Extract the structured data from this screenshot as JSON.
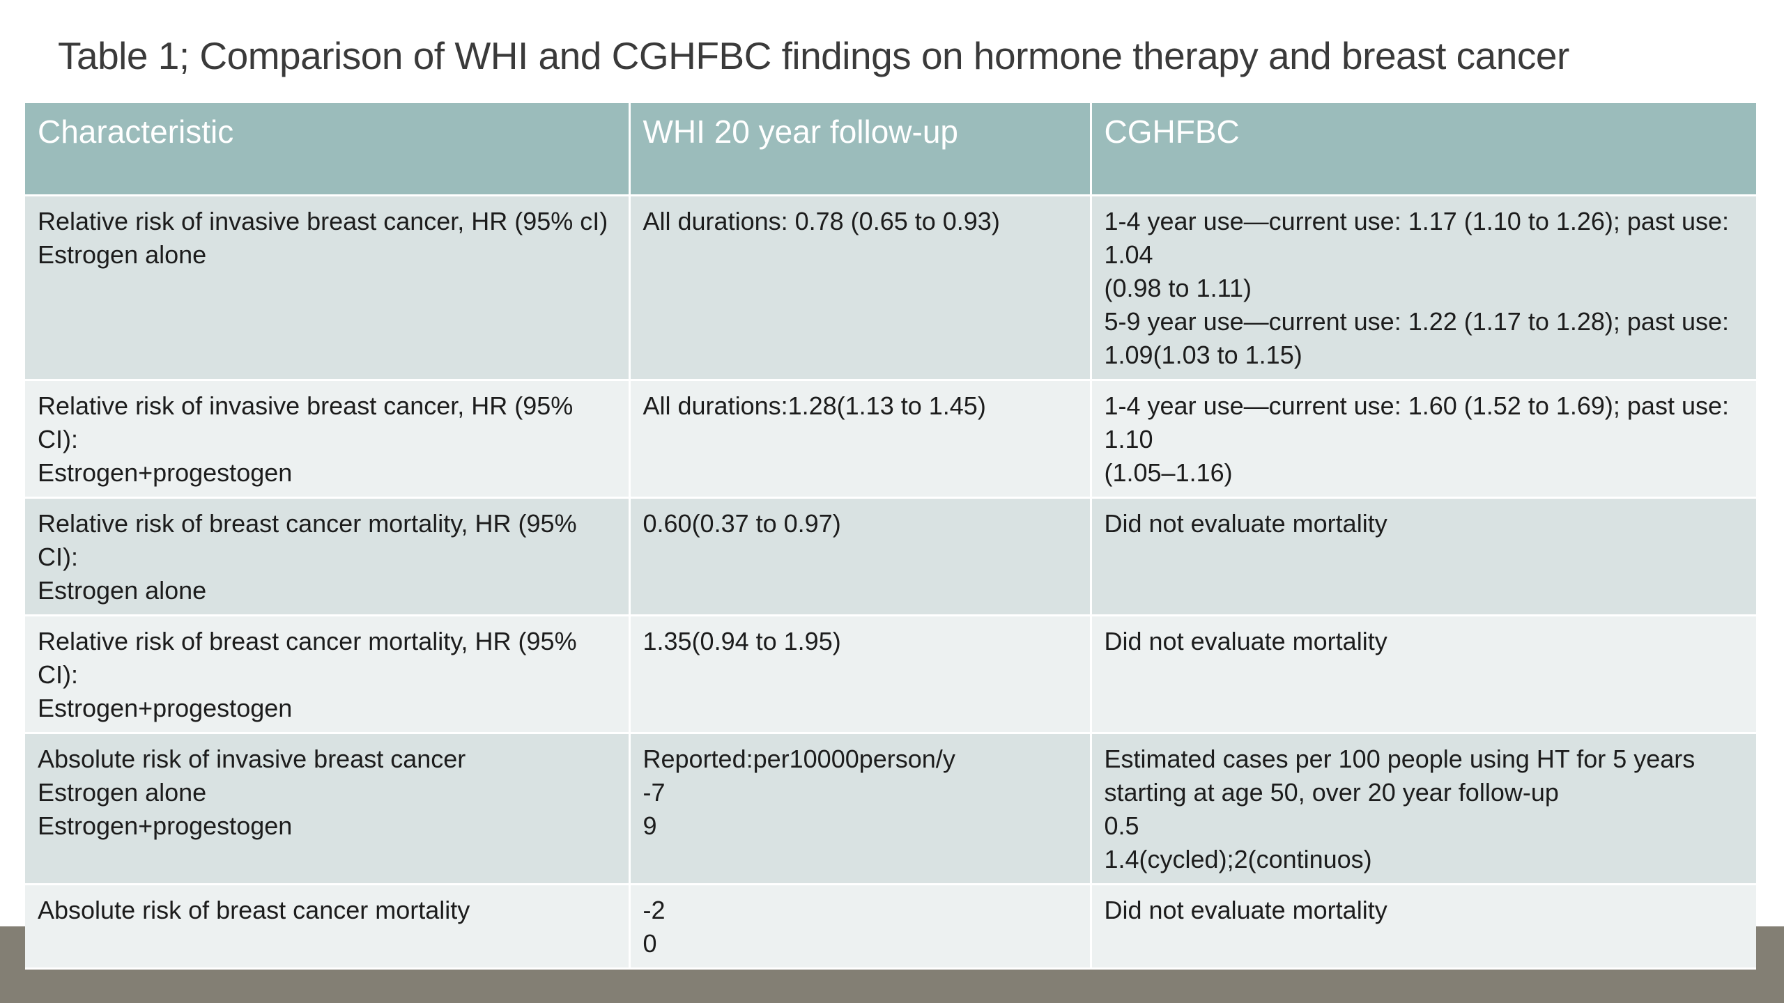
{
  "title": "Table 1; Comparison of WHI and CGHFBC findings on hormone therapy and breast cancer",
  "table": {
    "headers": [
      "Characteristic",
      "WHI 20 year follow-up",
      "CGHFBC"
    ],
    "rows": [
      [
        "Relative risk of invasive breast cancer, HR (95% cI)\nEstrogen alone",
        "All durations: 0.78 (0.65 to 0.93)",
        "1-4 year use—current use: 1.17 (1.10 to 1.26); past use: 1.04\n(0.98 to 1.11)\n5-9 year use—current use: 1.22 (1.17 to 1.28); past use: 1.09(1.03 to 1.15)"
      ],
      [
        "Relative risk of invasive breast cancer, HR (95% CI):\nEstrogen+progestogen",
        "All durations:1.28(1.13 to 1.45)",
        "1-4 year use—current use: 1.60 (1.52 to 1.69); past use: 1.10\n(1.05–1.16)"
      ],
      [
        "Relative risk of breast cancer mortality, HR (95% CI):\nEstrogen alone",
        "0.60(0.37 to 0.97)",
        "Did not evaluate mortality"
      ],
      [
        "Relative risk of breast cancer mortality, HR (95% CI):\nEstrogen+progestogen",
        "1.35(0.94 to 1.95)",
        "Did not evaluate mortality"
      ],
      [
        "Absolute risk of invasive breast cancer\nEstrogen alone\nEstrogen+progestogen",
        "Reported:per10000person/y\n-7\n9",
        "Estimated cases per 100 people using HT for 5 years starting at age 50, over 20 year follow-up\n0.5\n1.4(cycled);2(continuos)"
      ],
      [
        "Absolute risk of breast cancer mortality",
        "-2\n0",
        "Did not evaluate mortality"
      ]
    ]
  },
  "colors": {
    "header_bg": "#9bbcbb",
    "row_odd_bg": "#d9e2e2",
    "row_even_bg": "#edf1f1",
    "footer_band": "#837f74"
  }
}
